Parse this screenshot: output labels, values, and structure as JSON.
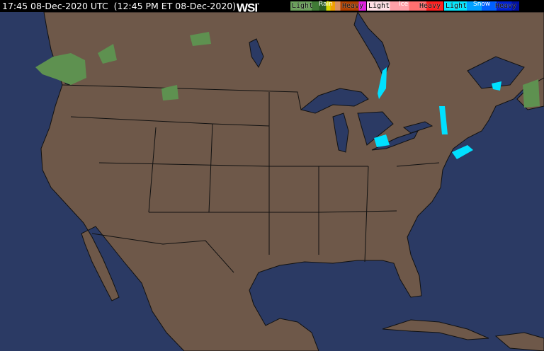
{
  "header": {
    "timestamp": "17:45 08-Dec-2020 UTC  (12:45 PM ET 08-Dec-2020)",
    "logo": "WSI",
    "logo_mark": "°"
  },
  "legend": {
    "rain": {
      "title": "Rain",
      "light": "Light",
      "heavy": "Heavy",
      "colors": [
        "#6aa05a",
        "#3f7a35",
        "#2c5e25",
        "#d8d800",
        "#f0a000",
        "#d89060",
        "#b04000",
        "#e020e0"
      ]
    },
    "ice": {
      "title": "Ice",
      "light": "Light",
      "heavy": "Heavy",
      "colors": [
        "#ffd0d8",
        "#ffa0a8",
        "#ff7070",
        "#ff3030",
        "#e00000"
      ]
    },
    "snow": {
      "title": "Snow",
      "light": "Light",
      "heavy": "Heavy",
      "colors": [
        "#00e0ff",
        "#00a0ff",
        "#0060ff",
        "#0030e0",
        "#0010a0"
      ]
    }
  },
  "map": {
    "ocean_color": "#2b3a64",
    "land_color": "#6e5849",
    "border_color": "#111111"
  }
}
